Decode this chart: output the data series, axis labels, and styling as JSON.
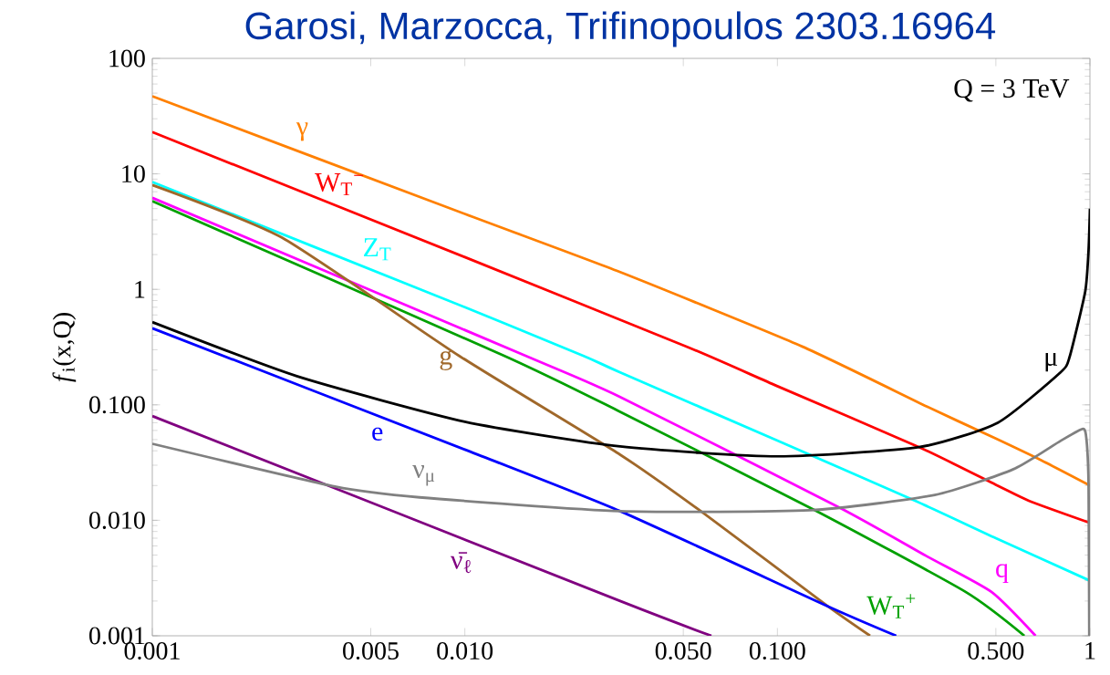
{
  "chart_data": {
    "type": "line",
    "title": "Garosi, Marzocca, Trifinopoulos 2303.16964",
    "ylabel": "*f*$_{i}$(x,Q)",
    "annotations": [
      "Q = 3 TeV"
    ],
    "log": "xy",
    "xlim": [
      0.001,
      1
    ],
    "ylim": [
      0.001,
      100
    ],
    "xticks": [
      0.001,
      0.005,
      {
        "value": 0.01,
        "label": "0.010"
      },
      {
        "value": 0.05,
        "label": "0.050"
      },
      {
        "value": 0.1,
        "label": "0.100"
      },
      {
        "value": 0.5,
        "label": "0.500"
      },
      1
    ],
    "yticks": [
      0.001,
      {
        "value": 0.01,
        "label": "0.010"
      },
      {
        "value": 0.1,
        "label": "0.100"
      },
      1,
      10,
      100
    ],
    "series": [
      {
        "name": "γ",
        "color": "#ff8000",
        "x": [
          0.001,
          0.01,
          0.0314,
          0.12,
          0.3,
          0.5,
          0.7,
          1
        ],
        "values": [
          47,
          4.5,
          1.41,
          0.32,
          0.097,
          0.051,
          0.033,
          0.02
        ]
      },
      {
        "name": "W$_{T}$$^{−}$",
        "color": "#ff0000",
        "x": [
          0.001,
          0.01,
          0.0514,
          0.1,
          0.284,
          0.5,
          0.64,
          1
        ],
        "values": [
          23,
          1.9,
          0.318,
          0.145,
          0.043,
          0.0203,
          0.0147,
          0.0095
        ]
      },
      {
        "name": "Z$_{T}$",
        "color": "#00ffff",
        "x": [
          0.001,
          0.01,
          0.024,
          0.0314,
          0.1,
          0.277,
          0.5,
          1
        ],
        "values": [
          8.5,
          0.7,
          0.265,
          0.191,
          0.049,
          0.0147,
          0.007,
          0.003
        ]
      },
      {
        "name": "q",
        "color": "#ff00ff",
        "x": [
          0.001,
          0.0157,
          0.0314,
          0.158,
          0.3,
          0.484,
          0.67
        ],
        "values": [
          6.2,
          0.265,
          0.117,
          0.0129,
          0.0049,
          0.0024,
          0.001
        ]
      },
      {
        "name": "W$_{T}$$^{+}$",
        "color": "#00a000",
        "x": [
          0.001,
          0.0134,
          0.0314,
          0.132,
          0.4,
          0.617
        ],
        "values": [
          5.8,
          0.265,
          0.087,
          0.0122,
          0.0024,
          0.001
        ]
      },
      {
        "name": "g",
        "color": "#a0682a",
        "x": [
          0.001,
          0.0026,
          0.0096,
          0.0314,
          0.0586,
          0.145,
          0.198
        ],
        "values": [
          8,
          2.8,
          0.265,
          0.037,
          0.0113,
          0.0018,
          0.001
        ]
      },
      {
        "name": "μ",
        "color": "#000000",
        "x": [
          0.001,
          0.0029,
          0.01,
          0.0314,
          0.1,
          0.284,
          0.507,
          0.805,
          0.861,
          0.966,
          0.99,
          1
        ],
        "values": [
          0.52,
          0.177,
          0.0714,
          0.0436,
          0.0357,
          0.043,
          0.07,
          0.191,
          0.26,
          0.96,
          2.2,
          5
        ]
      },
      {
        "name": "e",
        "color": "#0000ff",
        "x": [
          0.001,
          0.01,
          0.0314,
          0.145,
          0.24
        ],
        "values": [
          0.46,
          0.041,
          0.012,
          0.0018,
          0.001
        ]
      },
      {
        "name": "ν̄$_{ℓ}$",
        "color": "#800080",
        "x": [
          0.001,
          0.0314,
          0.0615
        ],
        "values": [
          0.08,
          0.002,
          0.001
        ]
      },
      {
        "name": "ν$_{μ}$",
        "color": "#808080",
        "x": [
          0.001,
          0.00384,
          0.00716,
          0.0314,
          0.127,
          0.319,
          0.569,
          0.805,
          0.95,
          0.975,
          0.99,
          0.995
        ],
        "values": [
          0.046,
          0.0196,
          0.0158,
          0.012,
          0.0122,
          0.0166,
          0.0277,
          0.0487,
          0.062,
          0.05,
          0.02,
          0.001
        ]
      }
    ]
  }
}
